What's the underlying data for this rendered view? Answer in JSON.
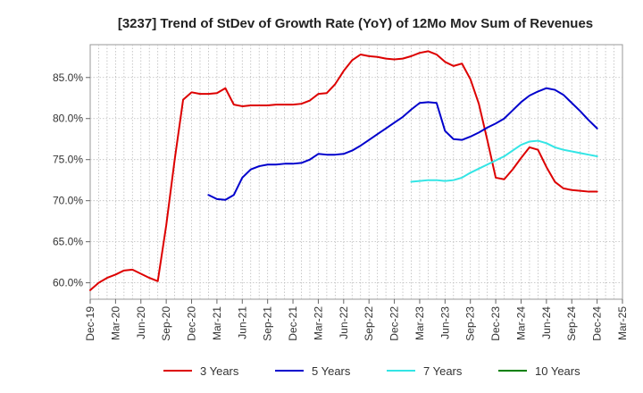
{
  "chart_data": {
    "type": "line",
    "title": "[3237]  Trend of StDev of Growth Rate (YoY) of 12Mo Mov Sum of Revenues",
    "xlabel": "",
    "ylabel": "",
    "x_ticks": [
      "Dec-19",
      "Mar-20",
      "Jun-20",
      "Sep-20",
      "Dec-20",
      "Mar-21",
      "Jun-21",
      "Sep-21",
      "Dec-21",
      "Mar-22",
      "Jun-22",
      "Sep-22",
      "Dec-22",
      "Mar-23",
      "Jun-23",
      "Sep-23",
      "Dec-23",
      "Mar-24",
      "Jun-24",
      "Sep-24",
      "Dec-24",
      "Mar-25"
    ],
    "y_ticks": [
      "60.0%",
      "65.0%",
      "70.0%",
      "75.0%",
      "80.0%",
      "85.0%"
    ],
    "y_tick_values": [
      60,
      65,
      70,
      75,
      80,
      85
    ],
    "ylim": [
      58,
      89
    ],
    "xlim": [
      "Dec-19",
      "Mar-25"
    ],
    "grid": true,
    "legend_position": "bottom",
    "series": [
      {
        "name": "3 Years",
        "color": "#dd0000",
        "points": [
          [
            "Dec-19",
            59.1
          ],
          [
            "Jan-20",
            60.0
          ],
          [
            "Feb-20",
            60.6
          ],
          [
            "Mar-20",
            61.0
          ],
          [
            "Apr-20",
            61.5
          ],
          [
            "May-20",
            61.6
          ],
          [
            "Jun-20",
            61.1
          ],
          [
            "Jul-20",
            60.6
          ],
          [
            "Aug-20",
            60.2
          ],
          [
            "Sep-20",
            67.0
          ],
          [
            "Oct-20",
            75.0
          ],
          [
            "Nov-20",
            82.3
          ],
          [
            "Dec-20",
            83.2
          ],
          [
            "Jan-21",
            83.0
          ],
          [
            "Feb-21",
            83.0
          ],
          [
            "Mar-21",
            83.1
          ],
          [
            "Apr-21",
            83.7
          ],
          [
            "May-21",
            81.7
          ],
          [
            "Jun-21",
            81.5
          ],
          [
            "Jul-21",
            81.6
          ],
          [
            "Aug-21",
            81.6
          ],
          [
            "Sep-21",
            81.6
          ],
          [
            "Oct-21",
            81.7
          ],
          [
            "Nov-21",
            81.7
          ],
          [
            "Dec-21",
            81.7
          ],
          [
            "Jan-22",
            81.8
          ],
          [
            "Feb-22",
            82.2
          ],
          [
            "Mar-22",
            83.0
          ],
          [
            "Apr-22",
            83.1
          ],
          [
            "May-22",
            84.2
          ],
          [
            "Jun-22",
            85.8
          ],
          [
            "Jul-22",
            87.1
          ],
          [
            "Aug-22",
            87.8
          ],
          [
            "Sep-22",
            87.6
          ],
          [
            "Oct-22",
            87.5
          ],
          [
            "Nov-22",
            87.3
          ],
          [
            "Dec-22",
            87.2
          ],
          [
            "Jan-23",
            87.3
          ],
          [
            "Feb-23",
            87.6
          ],
          [
            "Mar-23",
            88.0
          ],
          [
            "Apr-23",
            88.2
          ],
          [
            "May-23",
            87.8
          ],
          [
            "Jun-23",
            86.9
          ],
          [
            "Jul-23",
            86.4
          ],
          [
            "Aug-23",
            86.7
          ],
          [
            "Sep-23",
            84.8
          ],
          [
            "Oct-23",
            81.8
          ],
          [
            "Nov-23",
            77.4
          ],
          [
            "Dec-23",
            72.8
          ],
          [
            "Jan-24",
            72.6
          ],
          [
            "Feb-24",
            73.8
          ],
          [
            "Mar-24",
            75.2
          ],
          [
            "Apr-24",
            76.5
          ],
          [
            "May-24",
            76.2
          ],
          [
            "Jun-24",
            74.1
          ],
          [
            "Jul-24",
            72.3
          ],
          [
            "Aug-24",
            71.5
          ],
          [
            "Sep-24",
            71.3
          ],
          [
            "Oct-24",
            71.2
          ],
          [
            "Nov-24",
            71.1
          ],
          [
            "Dec-24",
            71.1
          ]
        ]
      },
      {
        "name": "5 Years",
        "color": "#0000cc",
        "points": [
          [
            "Feb-21",
            70.7
          ],
          [
            "Mar-21",
            70.2
          ],
          [
            "Apr-21",
            70.1
          ],
          [
            "May-21",
            70.7
          ],
          [
            "Jun-21",
            72.8
          ],
          [
            "Jul-21",
            73.8
          ],
          [
            "Aug-21",
            74.2
          ],
          [
            "Sep-21",
            74.4
          ],
          [
            "Oct-21",
            74.4
          ],
          [
            "Nov-21",
            74.5
          ],
          [
            "Dec-21",
            74.5
          ],
          [
            "Jan-22",
            74.6
          ],
          [
            "Feb-22",
            75.0
          ],
          [
            "Mar-22",
            75.7
          ],
          [
            "Apr-22",
            75.6
          ],
          [
            "May-22",
            75.6
          ],
          [
            "Jun-22",
            75.7
          ],
          [
            "Jul-22",
            76.1
          ],
          [
            "Aug-22",
            76.7
          ],
          [
            "Sep-22",
            77.4
          ],
          [
            "Oct-22",
            78.1
          ],
          [
            "Nov-22",
            78.8
          ],
          [
            "Dec-22",
            79.5
          ],
          [
            "Jan-23",
            80.2
          ],
          [
            "Feb-23",
            81.1
          ],
          [
            "Mar-23",
            81.9
          ],
          [
            "Apr-23",
            82.0
          ],
          [
            "May-23",
            81.9
          ],
          [
            "Jun-23",
            78.5
          ],
          [
            "Jul-23",
            77.5
          ],
          [
            "Aug-23",
            77.4
          ],
          [
            "Sep-23",
            77.8
          ],
          [
            "Oct-23",
            78.3
          ],
          [
            "Nov-23",
            78.9
          ],
          [
            "Dec-23",
            79.4
          ],
          [
            "Jan-24",
            80.0
          ],
          [
            "Feb-24",
            81.0
          ],
          [
            "Mar-24",
            82.0
          ],
          [
            "Apr-24",
            82.8
          ],
          [
            "May-24",
            83.3
          ],
          [
            "Jun-24",
            83.7
          ],
          [
            "Jul-24",
            83.5
          ],
          [
            "Aug-24",
            82.9
          ],
          [
            "Sep-24",
            81.9
          ],
          [
            "Oct-24",
            80.9
          ],
          [
            "Nov-24",
            79.8
          ],
          [
            "Dec-24",
            78.8
          ]
        ]
      },
      {
        "name": "7 Years",
        "color": "#33e5e5",
        "points": [
          [
            "Feb-23",
            72.3
          ],
          [
            "Mar-23",
            72.4
          ],
          [
            "Apr-23",
            72.5
          ],
          [
            "May-23",
            72.5
          ],
          [
            "Jun-23",
            72.4
          ],
          [
            "Jul-23",
            72.5
          ],
          [
            "Aug-23",
            72.8
          ],
          [
            "Sep-23",
            73.4
          ],
          [
            "Oct-23",
            73.9
          ],
          [
            "Nov-23",
            74.4
          ],
          [
            "Dec-23",
            74.9
          ],
          [
            "Jan-24",
            75.4
          ],
          [
            "Feb-24",
            76.1
          ],
          [
            "Mar-24",
            76.8
          ],
          [
            "Apr-24",
            77.2
          ],
          [
            "May-24",
            77.3
          ],
          [
            "Jun-24",
            77.0
          ],
          [
            "Jul-24",
            76.5
          ],
          [
            "Aug-24",
            76.2
          ],
          [
            "Sep-24",
            76.0
          ],
          [
            "Oct-24",
            75.8
          ],
          [
            "Nov-24",
            75.6
          ],
          [
            "Dec-24",
            75.4
          ]
        ]
      },
      {
        "name": "10 Years",
        "color": "#008000",
        "points": []
      }
    ]
  }
}
